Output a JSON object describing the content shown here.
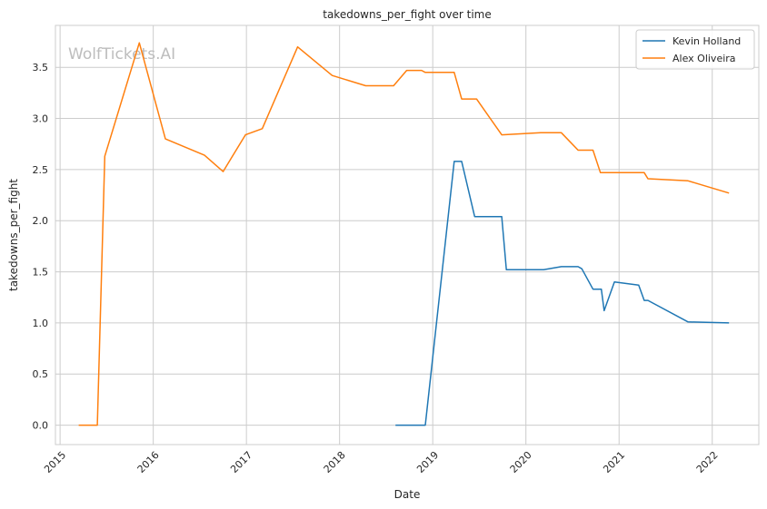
{
  "chart_data": {
    "type": "line",
    "title": "takedowns_per_fight over time",
    "xlabel": "Date",
    "ylabel": "takedowns_per_fight",
    "xlim": [
      2014.95,
      2022.5
    ],
    "ylim": [
      -0.19,
      3.91
    ],
    "x_ticks": [
      2015,
      2016,
      2017,
      2018,
      2019,
      2020,
      2021,
      2022
    ],
    "x_tick_labels": [
      "2015",
      "2016",
      "2017",
      "2018",
      "2019",
      "2020",
      "2021",
      "2022"
    ],
    "y_ticks": [
      0.0,
      0.5,
      1.0,
      1.5,
      2.0,
      2.5,
      3.0,
      3.5
    ],
    "y_tick_labels": [
      "0.0",
      "0.5",
      "1.0",
      "1.5",
      "2.0",
      "2.5",
      "3.0",
      "3.5"
    ],
    "grid": true,
    "legend_position": "top-right",
    "watermark": "WolfTickets.AI",
    "series": [
      {
        "name": "Kevin Holland",
        "color": "#1f77b4",
        "x": [
          2018.6,
          2018.92,
          2019.23,
          2019.31,
          2019.45,
          2019.74,
          2019.79,
          2020.19,
          2020.38,
          2020.56,
          2020.6,
          2020.72,
          2020.81,
          2020.84,
          2020.95,
          2021.21,
          2021.27,
          2021.31,
          2021.74,
          2022.18
        ],
        "y": [
          0.0,
          0.0,
          2.58,
          2.58,
          2.04,
          2.04,
          1.52,
          1.52,
          1.55,
          1.55,
          1.53,
          1.33,
          1.33,
          1.12,
          1.4,
          1.37,
          1.22,
          1.22,
          1.01,
          1.0
        ]
      },
      {
        "name": "Alex Oliveira",
        "color": "#ff7f0e",
        "x": [
          2015.2,
          2015.4,
          2015.48,
          2015.85,
          2016.13,
          2016.55,
          2016.75,
          2016.99,
          2017.17,
          2017.55,
          2017.92,
          2018.28,
          2018.58,
          2018.72,
          2018.88,
          2018.92,
          2019.23,
          2019.31,
          2019.47,
          2019.74,
          2020.16,
          2020.38,
          2020.56,
          2020.72,
          2020.8,
          2021.27,
          2021.31,
          2021.74,
          2022.18
        ],
        "y": [
          0.0,
          0.0,
          2.63,
          3.74,
          2.8,
          2.64,
          2.48,
          2.84,
          2.9,
          3.7,
          3.42,
          3.32,
          3.32,
          3.47,
          3.47,
          3.45,
          3.45,
          3.19,
          3.19,
          2.84,
          2.86,
          2.86,
          2.69,
          2.69,
          2.47,
          2.47,
          2.41,
          2.39,
          2.27
        ]
      }
    ]
  }
}
